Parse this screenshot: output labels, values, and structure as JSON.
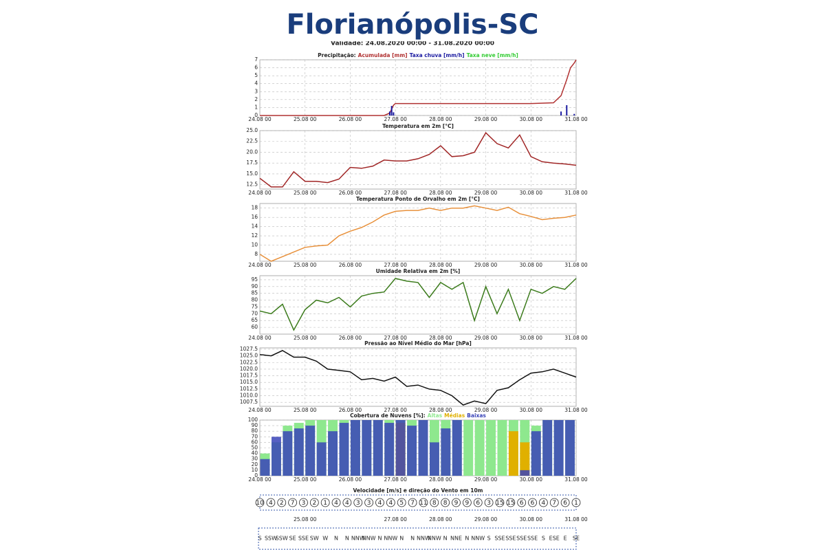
{
  "header": {
    "title": "Florianópolis-SC",
    "subtitle": "Validade: 24.08.2020 00:00 - 31.08.2020 00:00"
  },
  "chart_data": [
    {
      "type": "line",
      "title": "Precipitação:",
      "xlim": [
        0,
        168
      ],
      "xticks": [
        {
          "value": 0,
          "label": "24.08 00"
        },
        {
          "value": 24,
          "label": "25.08 00"
        },
        {
          "value": 48,
          "label": "26.08 00"
        },
        {
          "value": 72,
          "label": "27.08 00"
        },
        {
          "value": 96,
          "label": "28.08 00"
        },
        {
          "value": 120,
          "label": "29.08 00"
        },
        {
          "value": 144,
          "label": "30.08 00"
        },
        {
          "value": 168,
          "label": "31.08 00"
        }
      ],
      "ylim": [
        0,
        7
      ],
      "yticks": [
        0,
        1,
        2,
        3,
        4,
        5,
        6,
        7
      ],
      "grid": true,
      "series": [
        {
          "name": "Acumulada [mm]",
          "color": "#b03030",
          "type": "line",
          "x": [
            0,
            24,
            48,
            66,
            69,
            71,
            72,
            96,
            120,
            144,
            156,
            160,
            163,
            165,
            167,
            168
          ],
          "values": [
            0,
            0,
            0,
            0,
            0.3,
            1.3,
            1.5,
            1.5,
            1.5,
            1.5,
            1.6,
            2.5,
            4.5,
            6,
            6.6,
            7
          ]
        },
        {
          "name": "Taxa chuva [mm/h]",
          "color": "#1a1aa0",
          "type": "bar",
          "x": [
            69,
            70,
            71,
            160,
            163,
            167
          ],
          "values": [
            0.5,
            1.2,
            0.4,
            0.5,
            1.3,
            0.2
          ]
        },
        {
          "name": "Taxa neve [mm/h]",
          "color": "#33cc33",
          "type": "bar",
          "x": [],
          "values": []
        }
      ]
    },
    {
      "type": "line",
      "title": "Temperatura em 2m [°C]",
      "xlim": [
        0,
        168
      ],
      "xticks": [
        {
          "value": 0,
          "label": "24.08 00"
        },
        {
          "value": 24,
          "label": "25.08 00"
        },
        {
          "value": 48,
          "label": "26.08 00"
        },
        {
          "value": 72,
          "label": "27.08 00"
        },
        {
          "value": 96,
          "label": "28.08 00"
        },
        {
          "value": 120,
          "label": "29.08 00"
        },
        {
          "value": 144,
          "label": "30.08 00"
        },
        {
          "value": 168,
          "label": "31.08 00"
        }
      ],
      "ylim": [
        11.5,
        25
      ],
      "yticks": [
        12.5,
        {
          "value": 15,
          "label": "15.0"
        },
        17.5,
        {
          "value": 20,
          "label": "20.0"
        },
        22.5,
        {
          "value": 25,
          "label": "25.0"
        }
      ],
      "grid": true,
      "x": [
        0,
        6,
        12,
        18,
        24,
        30,
        36,
        42,
        48,
        54,
        60,
        66,
        72,
        78,
        84,
        90,
        96,
        102,
        108,
        114,
        120,
        126,
        132,
        138,
        144,
        150,
        156,
        162,
        168
      ],
      "series": [
        {
          "name": "Temperatura",
          "color": "#a02525",
          "values": [
            14,
            12,
            12,
            15.5,
            13.3,
            13.3,
            13,
            13.8,
            16.5,
            16.3,
            16.8,
            18.2,
            18,
            18,
            18.5,
            19.5,
            21.5,
            19,
            19.2,
            20,
            24.5,
            22,
            21,
            24,
            19,
            17.8,
            17.5,
            17.3,
            17
          ]
        }
      ]
    },
    {
      "type": "line",
      "title": "Temperatura Ponto de Orvalho em 2m [°C]",
      "xlim": [
        0,
        168
      ],
      "xticks": [
        {
          "value": 0,
          "label": "24.08 00"
        },
        {
          "value": 24,
          "label": "25.08 00"
        },
        {
          "value": 48,
          "label": "26.08 00"
        },
        {
          "value": 72,
          "label": "27.08 00"
        },
        {
          "value": 96,
          "label": "28.08 00"
        },
        {
          "value": 120,
          "label": "29.08 00"
        },
        {
          "value": 144,
          "label": "30.08 00"
        },
        {
          "value": 168,
          "label": "31.08 00"
        }
      ],
      "ylim": [
        6.5,
        19
      ],
      "yticks": [
        8,
        10,
        12,
        14,
        16,
        18
      ],
      "grid": true,
      "x": [
        0,
        6,
        12,
        18,
        24,
        30,
        36,
        42,
        48,
        54,
        60,
        66,
        72,
        78,
        84,
        90,
        96,
        102,
        108,
        114,
        120,
        126,
        132,
        138,
        144,
        150,
        156,
        162,
        168
      ],
      "series": [
        {
          "name": "Orvalho",
          "color": "#e8903a",
          "values": [
            8,
            6.5,
            7.5,
            8.5,
            9.5,
            9.8,
            10,
            12,
            13,
            13.8,
            15,
            16.5,
            17.3,
            17.5,
            17.5,
            18,
            17.5,
            18,
            18,
            18.5,
            18,
            17.5,
            18.2,
            16.8,
            16.2,
            15.5,
            15.8,
            16,
            16.5
          ]
        }
      ]
    },
    {
      "type": "line",
      "title": "Umidade Relativa em 2m [%]",
      "xlim": [
        0,
        168
      ],
      "xticks": [
        {
          "value": 0,
          "label": "24.08 00"
        },
        {
          "value": 24,
          "label": "25.08 00"
        },
        {
          "value": 48,
          "label": "26.08 00"
        },
        {
          "value": 72,
          "label": "27.08 00"
        },
        {
          "value": 96,
          "label": "28.08 00"
        },
        {
          "value": 120,
          "label": "29.08 00"
        },
        {
          "value": 144,
          "label": "30.08 00"
        },
        {
          "value": 168,
          "label": "31.08 00"
        }
      ],
      "ylim": [
        55,
        98
      ],
      "yticks": [
        60,
        65,
        70,
        75,
        80,
        85,
        90,
        95
      ],
      "grid": true,
      "x": [
        0,
        6,
        12,
        18,
        24,
        30,
        36,
        42,
        48,
        54,
        60,
        66,
        72,
        78,
        84,
        90,
        96,
        102,
        108,
        114,
        120,
        126,
        132,
        138,
        144,
        150,
        156,
        162,
        168
      ],
      "series": [
        {
          "name": "Umidade",
          "color": "#3a7a1a",
          "values": [
            72,
            70,
            77,
            58,
            73,
            80,
            78,
            82,
            75,
            83,
            85,
            86,
            96,
            94,
            93,
            82,
            93,
            88,
            93,
            65,
            90,
            70,
            88,
            65,
            88,
            85,
            90,
            88,
            96
          ]
        }
      ]
    },
    {
      "type": "line",
      "title": "Pressão ao Nível Médio do Mar [hPa]",
      "xlim": [
        0,
        168
      ],
      "xticks": [
        {
          "value": 0,
          "label": "24.08 00"
        },
        {
          "value": 24,
          "label": "25.08 00"
        },
        {
          "value": 48,
          "label": "26.08 00"
        },
        {
          "value": 72,
          "label": "27.08 00"
        },
        {
          "value": 96,
          "label": "28.08 00"
        },
        {
          "value": 120,
          "label": "29.08 00"
        },
        {
          "value": 144,
          "label": "30.08 00"
        },
        {
          "value": 168,
          "label": "31.08 00"
        }
      ],
      "ylim": [
        1006,
        1028
      ],
      "yticks": [
        1007.5,
        {
          "value": 1010,
          "label": "1010.0"
        },
        1012.5,
        {
          "value": 1015,
          "label": "1015.0"
        },
        1017.5,
        {
          "value": 1020,
          "label": "1020.0"
        },
        1022.5,
        {
          "value": 1025,
          "label": "1025.0"
        },
        1027.5
      ],
      "grid": true,
      "x": [
        0,
        6,
        12,
        18,
        24,
        30,
        36,
        42,
        48,
        54,
        60,
        66,
        72,
        78,
        84,
        90,
        96,
        102,
        108,
        114,
        120,
        126,
        132,
        138,
        144,
        150,
        156,
        162,
        168
      ],
      "series": [
        {
          "name": "Pressão",
          "color": "#111111",
          "values": [
            1025.5,
            1025,
            1027,
            1024.5,
            1024.5,
            1023,
            1020,
            1019.5,
            1019,
            1016,
            1016.5,
            1015.5,
            1017,
            1013.5,
            1014,
            1012.5,
            1012,
            1010,
            1006.5,
            1008,
            1007,
            1012,
            1013,
            1016,
            1018.5,
            1019,
            1020,
            1018.5,
            1017
          ]
        }
      ]
    },
    {
      "type": "bar",
      "title": "Cobertura de Nuvens [%]:",
      "xlim": [
        0,
        168
      ],
      "xticks": [
        {
          "value": 0,
          "label": "24.08 00"
        },
        {
          "value": 24,
          "label": "25.08 00"
        },
        {
          "value": 48,
          "label": "26.08 00"
        },
        {
          "value": 72,
          "label": "27.08 00"
        },
        {
          "value": 96,
          "label": "28.08 00"
        },
        {
          "value": 120,
          "label": "29.08 00"
        },
        {
          "value": 144,
          "label": "30.08 00"
        },
        {
          "value": 168,
          "label": "31.08 00"
        }
      ],
      "ylim": [
        0,
        100
      ],
      "yticks": [
        0,
        10,
        20,
        30,
        40,
        50,
        60,
        70,
        80,
        90,
        100
      ],
      "grid": true,
      "bar_hours": 6,
      "x": [
        0,
        6,
        12,
        18,
        24,
        30,
        36,
        42,
        48,
        54,
        60,
        66,
        72,
        78,
        84,
        90,
        96,
        102,
        108,
        114,
        120,
        126,
        132,
        138,
        144,
        150,
        156,
        162
      ],
      "series": [
        {
          "name": "Altas",
          "color": "#8ee88e",
          "values": [
            40,
            60,
            90,
            95,
            100,
            100,
            100,
            100,
            100,
            100,
            100,
            100,
            100,
            100,
            100,
            100,
            100,
            100,
            100,
            100,
            100,
            100,
            100,
            100,
            90,
            100,
            100,
            100
          ]
        },
        {
          "name": "Médias",
          "color": "#e0b000",
          "values": [
            0,
            0,
            0,
            0,
            0,
            0,
            0,
            0,
            0,
            0,
            0,
            0,
            95,
            0,
            0,
            0,
            0,
            0,
            0,
            0,
            0,
            0,
            80,
            60,
            0,
            0,
            0,
            0
          ]
        },
        {
          "name": "Baixas",
          "color": "#3a44b8",
          "values": [
            30,
            70,
            80,
            85,
            90,
            60,
            80,
            95,
            100,
            100,
            100,
            95,
            100,
            90,
            100,
            60,
            85,
            100,
            0,
            0,
            0,
            0,
            0,
            10,
            80,
            100,
            100,
            100
          ]
        }
      ]
    },
    {
      "type": "wind",
      "title": "Velocidade [m/s] e direção do Vento em 10m",
      "xlim": [
        0,
        168
      ],
      "xticks": [
        {
          "value": 24,
          "label": "25.08 00"
        },
        {
          "value": 72,
          "label": "27.08 00"
        },
        {
          "value": 96,
          "label": "28.08 00"
        },
        {
          "value": 120,
          "label": "29.08 00"
        },
        {
          "value": 144,
          "label": "30.08 00"
        },
        {
          "value": 168,
          "label": "31.08 00"
        }
      ],
      "values": [
        10,
        4,
        2,
        7,
        3,
        2,
        1,
        4,
        4,
        3,
        3,
        4,
        4,
        5,
        7,
        11,
        8,
        8,
        9,
        9,
        6,
        3,
        15,
        15,
        6,
        6,
        4,
        7,
        6,
        1
      ],
      "directions": [
        "S",
        "SSW",
        "SSW",
        "SE",
        "SSE",
        "SW",
        "W",
        "N",
        "N",
        "NNW",
        "NNW",
        "N",
        "NNW",
        "N",
        "N",
        "NNW",
        "NNW",
        "N",
        "NNE",
        "N",
        "NNW",
        "S",
        "SSE",
        "SSE",
        "SSE",
        "SSE",
        "S",
        "ESE",
        "E",
        "SE"
      ]
    }
  ]
}
